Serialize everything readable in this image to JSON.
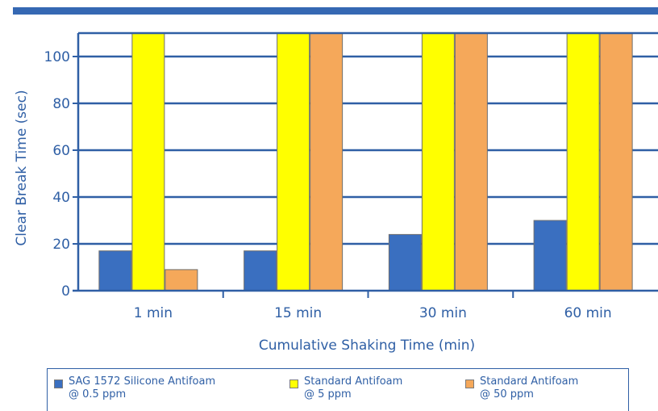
{
  "chart_data": {
    "type": "bar",
    "ylabel": "Clear Break Time (sec)",
    "xlabel": "Cumulative Shaking Time (min)",
    "categories": [
      "1 min",
      "15 min",
      "30 min",
      "60 min"
    ],
    "ylim": [
      0,
      110
    ],
    "yticks": [
      "0",
      "20",
      "40",
      "60",
      "80",
      "100"
    ],
    "grid": true,
    "legend_position": "bottom",
    "series": [
      {
        "name": "SAG 1572 Silicone Antifoam @ 0.5 ppm",
        "values": [
          17,
          17,
          24,
          30
        ],
        "color": "#3a6fc0"
      },
      {
        "name": "Standard Antifoam @ 5 ppm",
        "values": [
          110,
          110,
          110,
          110
        ],
        "color": "#ffff00"
      },
      {
        "name": "Standard Antifoam @ 50 ppm",
        "values": [
          9,
          110,
          110,
          110
        ],
        "color": "#f5a85a"
      }
    ],
    "legend": [
      {
        "line1": "SAG 1572 Silicone Antifoam",
        "line2": "@ 0.5 ppm"
      },
      {
        "line1": "Standard Antifoam",
        "line2": "@ 5 ppm"
      },
      {
        "line1": "Standard Antifoam",
        "line2": "@ 50 ppm"
      }
    ],
    "colors": {
      "axis": "#2f5fa5",
      "grid": "#2f5fa5",
      "top_bar": "#3568b3"
    }
  }
}
